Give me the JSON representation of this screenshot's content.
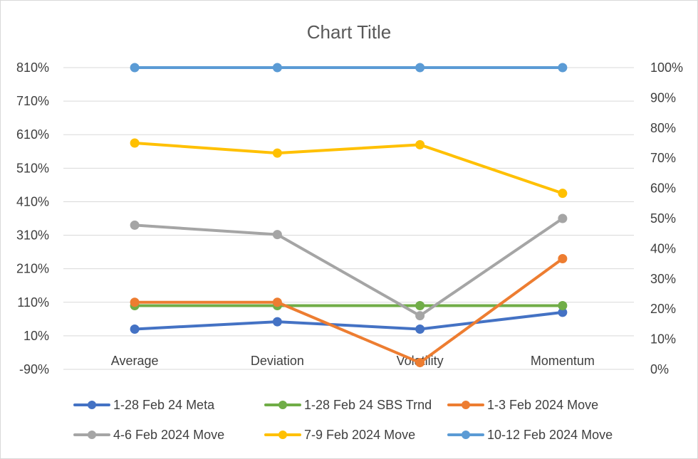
{
  "chart_data": {
    "type": "line",
    "title": "Chart Title",
    "categories": [
      "Average",
      "Deviation",
      "Volatility",
      "Momentum"
    ],
    "y_left": {
      "min": -0.9,
      "max": 8.1,
      "step": 1.0,
      "tick_labels": [
        "-90%",
        "10%",
        "110%",
        "210%",
        "310%",
        "410%",
        "510%",
        "610%",
        "710%",
        "810%"
      ]
    },
    "y_right": {
      "min": 0,
      "max": 1.0,
      "step": 0.1,
      "tick_labels": [
        "0%",
        "10%",
        "20%",
        "30%",
        "40%",
        "50%",
        "60%",
        "70%",
        "80%",
        "90%",
        "100%"
      ]
    },
    "grid": true,
    "legend_position": "bottom",
    "series": [
      {
        "name": "1-28 Feb 24 Meta",
        "color": "#4472C4",
        "axis": "left",
        "values": [
          0.3,
          0.52,
          0.3,
          0.8
        ]
      },
      {
        "name": "1-28 Feb 24 SBS Trnd",
        "color": "#70AD47",
        "axis": "left",
        "values": [
          1.0,
          1.0,
          1.0,
          1.0
        ]
      },
      {
        "name": "1-3 Feb 2024 Move",
        "color": "#ED7D31",
        "axis": "left",
        "values": [
          1.1,
          1.1,
          -0.7,
          2.4
        ]
      },
      {
        "name": "4-6 Feb 2024 Move",
        "color": "#A5A5A5",
        "axis": "left",
        "values": [
          3.4,
          3.12,
          0.7,
          3.6
        ]
      },
      {
        "name": "7-9 Feb 2024 Move",
        "color": "#FFC000",
        "axis": "left",
        "values": [
          5.85,
          5.55,
          5.8,
          4.35
        ]
      },
      {
        "name": "10-12 Feb 2024 Move",
        "color": "#5B9BD5",
        "axis": "right",
        "values": [
          1.0,
          1.0,
          1.0,
          1.0
        ]
      }
    ]
  }
}
